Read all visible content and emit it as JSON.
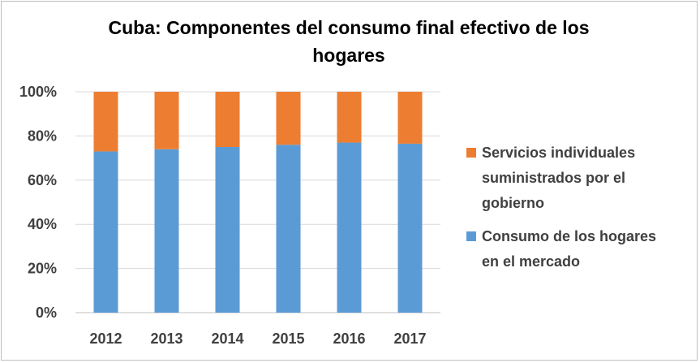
{
  "chart_data": {
    "type": "bar",
    "stacked": true,
    "percent_stacked": true,
    "title_lines": [
      "Cuba: Componentes del consumo final efectivo de los",
      "hogares"
    ],
    "categories": [
      "2012",
      "2013",
      "2014",
      "2015",
      "2016",
      "2017"
    ],
    "series": [
      {
        "name": "Consumo de los hogares en el mercado",
        "legend_lines": [
          "Consumo de los hogares",
          "en el mercado"
        ],
        "color": "#5b9bd5",
        "values": [
          73,
          74,
          75,
          76,
          77,
          76.5
        ]
      },
      {
        "name": "Servicios individuales suministrados por el gobierno",
        "legend_lines": [
          "Servicios individuales",
          "suministrados por el",
          "gobierno"
        ],
        "color": "#ed7d31",
        "values": [
          27,
          26,
          25,
          24,
          23,
          23.5
        ]
      }
    ],
    "ylim": [
      0,
      100
    ],
    "yticks": [
      "0%",
      "20%",
      "40%",
      "60%",
      "80%",
      "100%"
    ],
    "legend_position": "right",
    "grid": true
  }
}
